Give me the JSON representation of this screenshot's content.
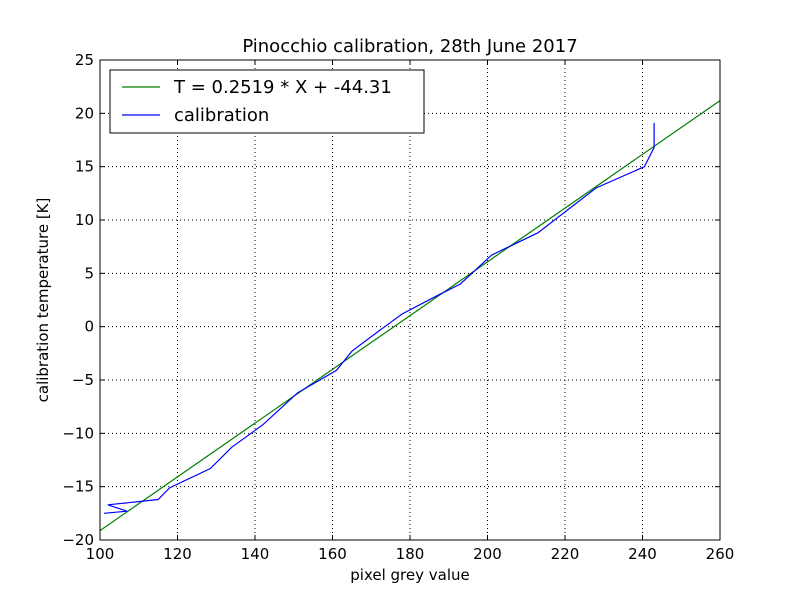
{
  "chart_data": {
    "type": "line",
    "title": "Pinocchio calibration, 28th June 2017",
    "xlabel": "pixel grey value",
    "ylabel": "calibration temperature [K]",
    "xlim": [
      100,
      260
    ],
    "ylim": [
      -20,
      25
    ],
    "xticks": [
      100,
      120,
      140,
      160,
      180,
      200,
      220,
      240,
      260
    ],
    "yticks": [
      -20,
      -15,
      -10,
      -5,
      0,
      5,
      10,
      15,
      20,
      25
    ],
    "xtick_labels": [
      "100",
      "120",
      "140",
      "160",
      "180",
      "200",
      "220",
      "240",
      "260"
    ],
    "ytick_labels": [
      "−20",
      "−15",
      "−10",
      "−5",
      "0",
      "5",
      "10",
      "15",
      "20",
      "25"
    ],
    "grid": true,
    "legend_position": "upper-left",
    "series": [
      {
        "name": "T = 0.2519 * X + -44.31",
        "color": "#008000",
        "x": [
          100,
          260
        ],
        "y": [
          -19.12,
          21.19
        ]
      },
      {
        "name": "calibration",
        "color": "#0000ff",
        "x": [
          101,
          107,
          102,
          110,
          115,
          118,
          128.5,
          134,
          142,
          151,
          161,
          165,
          172,
          178,
          187,
          193,
          201,
          213,
          228,
          240.5,
          243,
          243
        ],
        "y": [
          -17.5,
          -17.3,
          -16.7,
          -16.4,
          -16.2,
          -15.1,
          -13.3,
          -11.3,
          -9.2,
          -6.2,
          -4.1,
          -2.3,
          -0.4,
          1.2,
          2.9,
          4.0,
          6.7,
          8.8,
          13.0,
          15.0,
          16.8,
          19.1
        ]
      }
    ]
  }
}
